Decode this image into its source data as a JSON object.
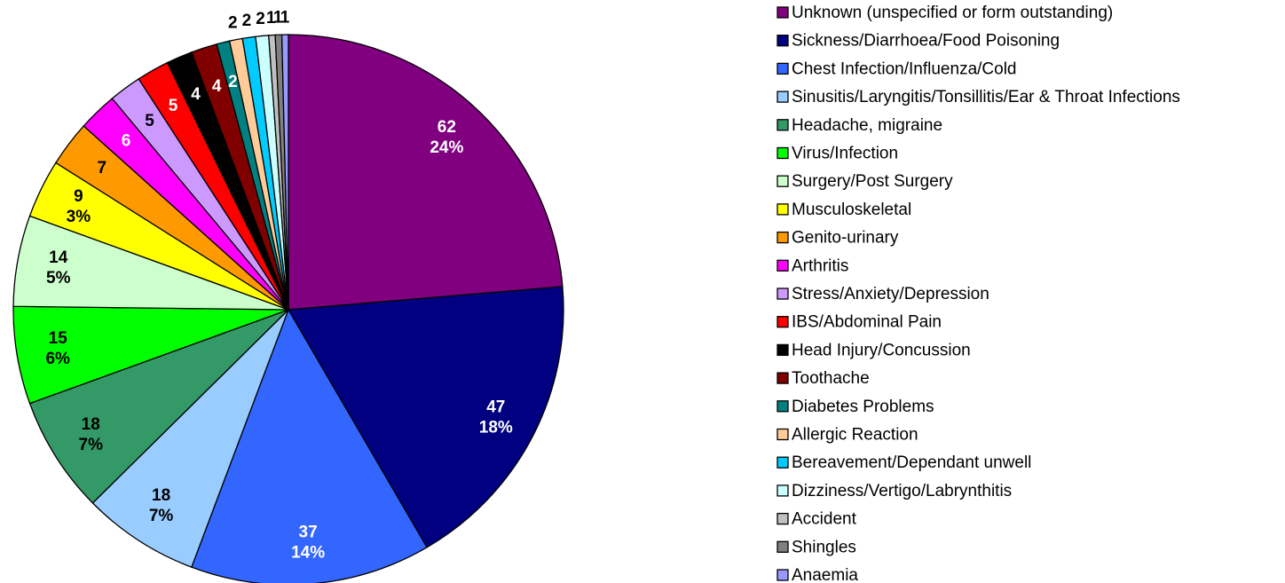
{
  "chart_data": {
    "type": "pie",
    "categories": [
      "Unknown (unspecified or form outstanding)",
      "Sickness/Diarrhoea/Food Poisoning",
      "Chest Infection/Influenza/Cold",
      "Sinusitis/Laryngitis/Tonsillitis/Ear & Throat Infections",
      "Headache, migraine",
      "Virus/Infection",
      "Surgery/Post Surgery",
      "Musculoskeletal",
      "Genito-urinary",
      "Arthritis",
      "Stress/Anxiety/Depression",
      "IBS/Abdominal Pain",
      "Head Injury/Concussion",
      "Toothache",
      "Diabetes Problems",
      "Allergic Reaction",
      "Bereavement/Dependant unwell",
      "Dizziness/Vertigo/Labrynthitis",
      "Accident",
      "Shingles",
      "Anaemia"
    ],
    "values": [
      62,
      47,
      37,
      18,
      18,
      15,
      14,
      9,
      7,
      6,
      5,
      5,
      4,
      4,
      2,
      2,
      2,
      2,
      1,
      1,
      1
    ],
    "percent_labels": [
      "24%",
      "18%",
      "14%",
      "7%",
      "7%",
      "6%",
      "5%",
      "3%",
      null,
      null,
      null,
      null,
      null,
      null,
      null,
      null,
      null,
      null,
      null,
      null,
      null
    ],
    "colors": [
      "#800080",
      "#000080",
      "#3366ff",
      "#99ccff",
      "#339966",
      "#00ff00",
      "#ccffcc",
      "#ffff00",
      "#ff9900",
      "#ff00ff",
      "#cc99ff",
      "#ff0000",
      "#000000",
      "#800000",
      "#008080",
      "#ffcc99",
      "#00ccff",
      "#ccffff",
      "#c0c0c0",
      "#808080",
      "#9999ff"
    ],
    "legend": "right"
  }
}
